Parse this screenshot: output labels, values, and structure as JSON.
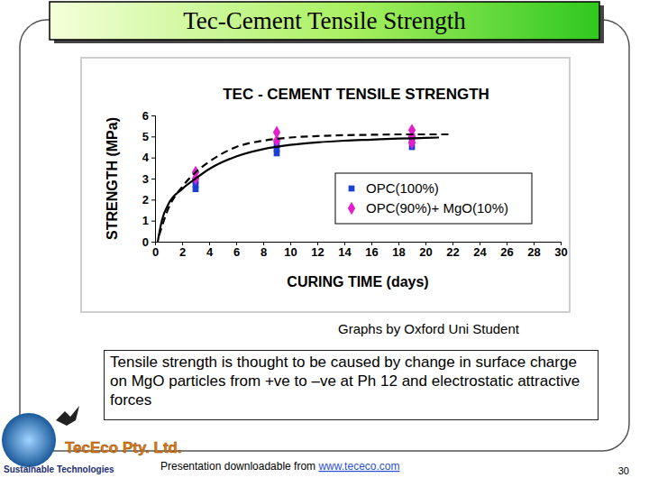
{
  "chart_data": {
    "type": "scatter",
    "title": "TEC - CEMENT TENSILE STRENGTH",
    "x_label": "CURING TIME (days)",
    "y_label": "STRENGTH (MPa)",
    "xlim": [
      0,
      30
    ],
    "xticks": [
      0,
      2,
      4,
      6,
      8,
      10,
      12,
      14,
      16,
      18,
      20,
      22,
      24,
      26,
      28,
      30
    ],
    "ylim": [
      0,
      6
    ],
    "yticks": [
      0,
      1,
      2,
      3,
      4,
      5,
      6
    ],
    "grid": false,
    "legend": "right",
    "series": [
      {
        "name": "OPC(100%)",
        "type": "scatter",
        "marker": "square",
        "color": "#1f3fd0",
        "x": [
          3,
          3,
          3,
          9,
          9,
          9,
          19,
          19,
          19
        ],
        "values": [
          2.5,
          2.7,
          2.9,
          4.2,
          4.4,
          4.6,
          4.5,
          4.8,
          5.0
        ]
      },
      {
        "name": "OPC(90%)+ MgO(10%)",
        "type": "scatter",
        "marker": "diamond",
        "color": "#e21fc8",
        "x": [
          3,
          3,
          9,
          9,
          19,
          19,
          19
        ],
        "values": [
          3.0,
          3.3,
          4.8,
          5.2,
          4.7,
          5.0,
          5.3
        ]
      },
      {
        "type": "line",
        "line_style": "solid",
        "color": "#000000",
        "x": [
          0.2,
          0.5,
          1,
          2,
          3,
          4,
          6,
          8,
          10,
          12,
          14,
          16,
          18,
          20,
          21
        ],
        "values": [
          0,
          1.0,
          1.8,
          2.5,
          3.0,
          3.45,
          4.05,
          4.4,
          4.6,
          4.72,
          4.8,
          4.85,
          4.9,
          4.93,
          4.95
        ]
      },
      {
        "type": "line",
        "line_style": "dashed",
        "color": "#000000",
        "x": [
          0.3,
          1,
          2,
          3,
          4,
          6,
          8,
          10,
          12,
          14,
          16,
          18,
          20,
          22
        ],
        "values": [
          0.3,
          1.6,
          2.6,
          3.3,
          3.8,
          4.5,
          4.8,
          4.95,
          5.02,
          5.06,
          5.08,
          5.1,
          5.1,
          5.1
        ]
      }
    ]
  },
  "slide": {
    "title": "Tec-Cement Tensile Strength",
    "credit": "Graphs by Oxford Uni Student",
    "body": "Tensile strength is thought to be caused by change in surface charge on MgO particles from +ve to –ve at Ph 12 and electrostatic attractive forces",
    "company": "TecEco Pty. Ltd.",
    "tagline": "Sustainable Technologies",
    "footer": "Presentation downloadable from ",
    "link": "www.tececo.com",
    "page": "30"
  }
}
